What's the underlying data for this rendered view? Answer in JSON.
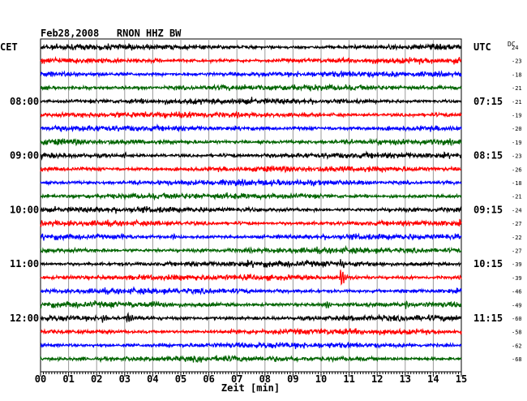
{
  "header": {
    "title": "Feb28,2008   RNON HHZ BW",
    "left_tz": "CET",
    "right_tz": "UTC",
    "dc_label": "DC"
  },
  "chart_data": {
    "type": "line",
    "title": "Feb28,2008   RNON HHZ BW",
    "xlabel": "Zeit [min]",
    "ylabel": "",
    "xlim": [
      0,
      15
    ],
    "x_ticks": [
      "00",
      "01",
      "02",
      "03",
      "04",
      "05",
      "06",
      "07",
      "08",
      "09",
      "10",
      "11",
      "12",
      "13",
      "14",
      "15"
    ],
    "grid": true,
    "trace_colors": [
      "#000000",
      "#ff0000",
      "#0000ff",
      "#006400"
    ],
    "left_time_labels": [
      {
        "trace": 4,
        "label": "08:00"
      },
      {
        "trace": 8,
        "label": "09:00"
      },
      {
        "trace": 12,
        "label": "10:00"
      },
      {
        "trace": 16,
        "label": "11:00"
      },
      {
        "trace": 20,
        "label": "12:00"
      }
    ],
    "right_time_labels": [
      {
        "trace": 0,
        "label": "UTC"
      },
      {
        "trace": 4,
        "label": "07:15"
      },
      {
        "trace": 8,
        "label": "08:15"
      },
      {
        "trace": 12,
        "label": "09:15"
      },
      {
        "trace": 16,
        "label": "10:15"
      },
      {
        "trace": 20,
        "label": "11:15"
      }
    ],
    "dc_offsets": [
      "24",
      "-23",
      "-18",
      "-21",
      "-21",
      "-19",
      "-20",
      "-19",
      "-23",
      "-26",
      "-18",
      "-21",
      "-24",
      "-27",
      "-22",
      "-27",
      "-39",
      "-39",
      "-46",
      "-49",
      "-60",
      "-58",
      "-62",
      "-68"
    ],
    "events": [
      {
        "trace": 17,
        "minute": 10.7,
        "amplitude": 1.0
      },
      {
        "trace": 16,
        "minute": 10.7,
        "amplitude": 0.5
      },
      {
        "trace": 20,
        "minute": 3.1,
        "amplitude": 0.55
      },
      {
        "trace": 20,
        "minute": 2.2,
        "amplitude": 0.35
      },
      {
        "trace": 19,
        "minute": 10.2,
        "amplitude": 0.4
      },
      {
        "trace": 19,
        "minute": 4.0,
        "amplitude": 0.35
      },
      {
        "trace": 19,
        "minute": 13.0,
        "amplitude": 0.3
      },
      {
        "trace": 14,
        "minute": 2.9,
        "amplitude": 0.3
      },
      {
        "trace": 14,
        "minute": 4.7,
        "amplitude": 0.25
      },
      {
        "trace": 7,
        "minute": 11.8,
        "amplitude": 0.25
      },
      {
        "trace": 2,
        "minute": 13.4,
        "amplitude": 0.2
      },
      {
        "trace": 8,
        "minute": 3.0,
        "amplitude": 0.25
      }
    ]
  }
}
